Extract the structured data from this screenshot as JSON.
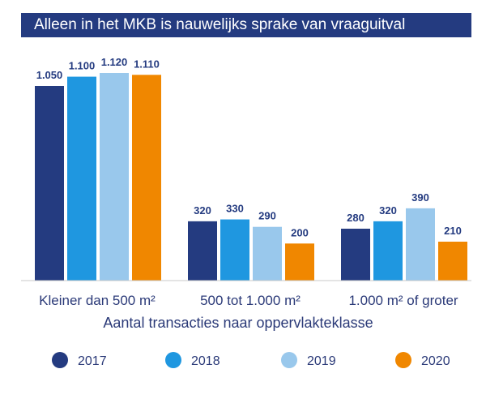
{
  "header": {
    "title": "Alleen in het MKB is nauwelijks sprake van vraaguitval"
  },
  "colors": {
    "2017": "#243b80",
    "2018": "#1f97e0",
    "2019": "#99c8ec",
    "2020": "#f08700",
    "title_bg": "#243b80",
    "text": "#2b3a78"
  },
  "chart_data": {
    "type": "bar",
    "title": "Alleen in het MKB is nauwelijks sprake van vraaguitval",
    "xlabel": "Aantal transacties naar oppervlakteklasse",
    "ylabel": "",
    "ylim": [
      0,
      1120
    ],
    "grid": false,
    "legend_position": "bottom",
    "categories": [
      "Kleiner dan 500 m²",
      "500 tot 1.000 m²",
      "1.000 m² of groter"
    ],
    "series": [
      {
        "name": "2017",
        "color": "#243b80",
        "values": [
          1050,
          320,
          280
        ],
        "labels": [
          "1.050",
          "320",
          "280"
        ]
      },
      {
        "name": "2018",
        "color": "#1f97e0",
        "values": [
          1100,
          330,
          320
        ],
        "labels": [
          "1.100",
          "330",
          "320"
        ]
      },
      {
        "name": "2019",
        "color": "#99c8ec",
        "values": [
          1120,
          290,
          390
        ],
        "labels": [
          "1.120",
          "290",
          "390"
        ]
      },
      {
        "name": "2020",
        "color": "#f08700",
        "values": [
          1110,
          200,
          210
        ],
        "labels": [
          "1.110",
          "200",
          "210"
        ]
      }
    ]
  }
}
